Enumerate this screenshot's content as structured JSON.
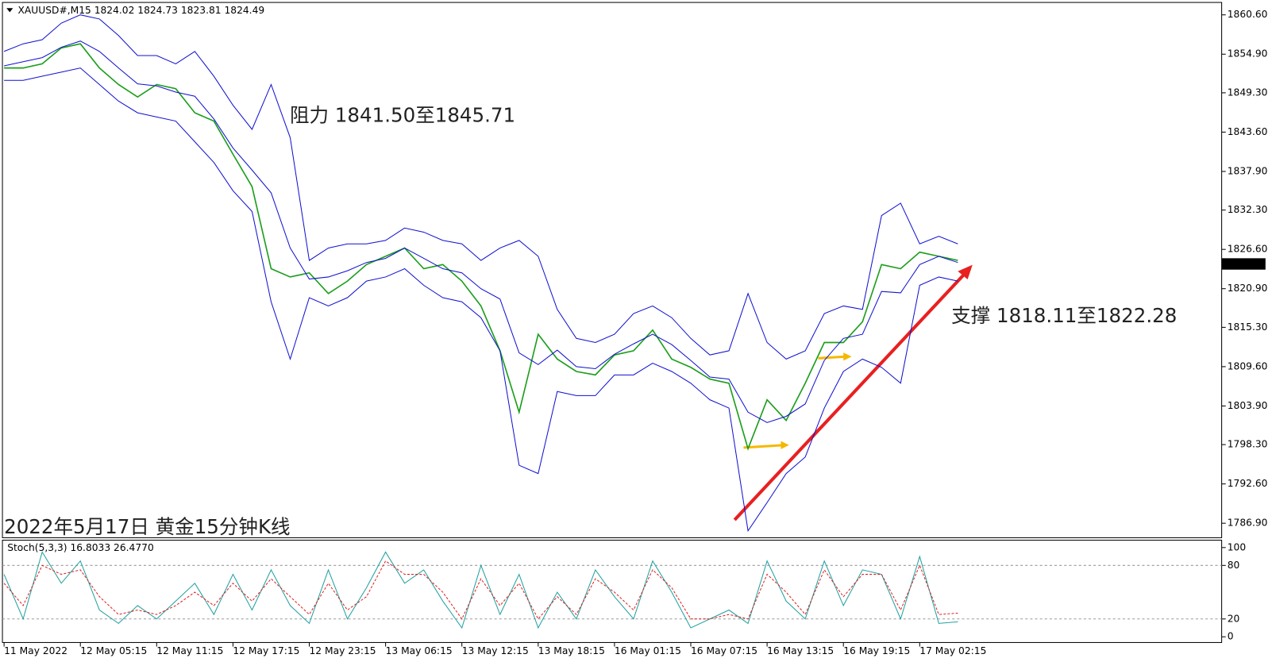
{
  "chart_data": [
    {
      "type": "line",
      "title": "XAUUSD#,M15  1824.02 1824.73 1823.81 1824.49",
      "annotations": [
        "阻力 1841.50至1845.71",
        "支撑 1818.11至1822.28",
        "2022年5月17日 黄金15分钟K线"
      ],
      "categories": [
        "11 May 2022",
        null,
        null,
        null,
        "12 May 05:15",
        null,
        null,
        null,
        "12 May 11:15",
        null,
        null,
        null,
        "12 May 17:15",
        null,
        null,
        null,
        "12 May 23:15",
        null,
        null,
        null,
        "13 May 06:15",
        null,
        null,
        null,
        "13 May 12:15",
        null,
        null,
        null,
        "13 May 18:15",
        null,
        null,
        null,
        "16 May 01:15",
        null,
        null,
        null,
        "16 May 07:15",
        null,
        null,
        null,
        "16 May 13:15",
        null,
        null,
        null,
        "16 May 19:15",
        null,
        null,
        null,
        "17 May 02:15",
        null,
        null
      ],
      "series": [
        {
          "name": "Close",
          "color": "#1c9e1c",
          "values": [
            1852.9,
            1852.9,
            1853.5,
            1855.8,
            1856.4,
            1852.9,
            1850.5,
            1848.7,
            1850.5,
            1849.9,
            1846.4,
            1845.2,
            1840.4,
            1835.7,
            1823.8,
            1822.6,
            1823.2,
            1820.2,
            1822.0,
            1824.4,
            1825.6,
            1826.8,
            1823.8,
            1824.4,
            1822.0,
            1818.4,
            1811.9,
            1803.0,
            1814.3,
            1810.7,
            1808.9,
            1808.4,
            1811.3,
            1811.9,
            1814.9,
            1810.7,
            1809.5,
            1807.8,
            1807.2,
            1797.7,
            1804.8,
            1801.8,
            1807.2,
            1813.1,
            1813.1,
            1816.1,
            1824.4,
            1823.8,
            1826.2,
            1825.6,
            1825.0
          ]
        },
        {
          "name": "Upper",
          "color": "#1010d0",
          "values": [
            1855.3,
            1856.4,
            1857.0,
            1859.4,
            1860.6,
            1860.0,
            1857.6,
            1854.7,
            1854.7,
            1853.5,
            1855.3,
            1851.7,
            1847.5,
            1844.0,
            1850.5,
            1842.8,
            1825.0,
            1826.8,
            1827.4,
            1827.4,
            1827.9,
            1829.7,
            1829.1,
            1827.9,
            1827.4,
            1825.0,
            1826.8,
            1827.9,
            1825.6,
            1817.9,
            1813.7,
            1813.1,
            1814.3,
            1817.3,
            1818.4,
            1816.7,
            1813.7,
            1811.3,
            1811.9,
            1820.2,
            1813.1,
            1810.7,
            1811.9,
            1817.3,
            1818.4,
            1817.9,
            1831.5,
            1833.3,
            1827.4,
            1828.5,
            1827.4
          ]
        },
        {
          "name": "Middle",
          "color": "#1010d0",
          "values": [
            1853.2,
            1853.8,
            1854.4,
            1855.9,
            1856.8,
            1855.3,
            1852.9,
            1850.6,
            1850.3,
            1849.4,
            1848.8,
            1845.5,
            1841.3,
            1838.1,
            1834.8,
            1826.8,
            1822.3,
            1822.6,
            1823.5,
            1824.7,
            1825.3,
            1826.8,
            1825.3,
            1823.8,
            1823.2,
            1820.9,
            1819.4,
            1811.6,
            1809.9,
            1812.0,
            1809.6,
            1809.3,
            1811.4,
            1812.9,
            1814.3,
            1812.8,
            1810.5,
            1808.1,
            1807.8,
            1803.0,
            1801.5,
            1802.4,
            1804.2,
            1810.5,
            1813.7,
            1814.3,
            1820.5,
            1820.3,
            1824.4,
            1825.6,
            1824.7
          ]
        },
        {
          "name": "Lower",
          "color": "#1010d0",
          "values": [
            1851.1,
            1851.1,
            1851.7,
            1852.3,
            1852.9,
            1850.5,
            1848.1,
            1846.4,
            1845.8,
            1845.2,
            1842.2,
            1839.2,
            1835.1,
            1832.1,
            1819.0,
            1810.7,
            1819.6,
            1818.4,
            1819.6,
            1822.0,
            1822.6,
            1823.8,
            1821.4,
            1819.6,
            1819.0,
            1816.7,
            1811.9,
            1795.3,
            1794.1,
            1806.0,
            1805.4,
            1805.4,
            1808.4,
            1808.4,
            1810.1,
            1808.9,
            1807.2,
            1804.8,
            1803.6,
            1785.8,
            1789.9,
            1794.1,
            1796.5,
            1803.6,
            1808.9,
            1810.7,
            1809.5,
            1807.2,
            1821.4,
            1822.6,
            1822.0
          ]
        }
      ],
      "last_price": 1824.49,
      "ylim": [
        1784.8,
        1862.4
      ],
      "yticks": [
        {
          "value": 1860.6,
          "label": "1860.60"
        },
        {
          "value": 1854.9,
          "label": "1854.90"
        },
        {
          "value": 1849.3,
          "label": "1849.30"
        },
        {
          "value": 1843.6,
          "label": "1843.60"
        },
        {
          "value": 1837.9,
          "label": "1837.90"
        },
        {
          "value": 1832.3,
          "label": "1832.30"
        },
        {
          "value": 1826.6,
          "label": "1826.60"
        },
        {
          "value": 1820.9,
          "label": "1820.90"
        },
        {
          "value": 1815.3,
          "label": "1815.30"
        },
        {
          "value": 1809.6,
          "label": "1809.60"
        },
        {
          "value": 1803.9,
          "label": "1803.90"
        },
        {
          "value": 1798.3,
          "label": "1798.30"
        },
        {
          "value": 1792.6,
          "label": "1792.60"
        },
        {
          "value": 1786.9,
          "label": "1786.90"
        }
      ]
    },
    {
      "type": "line",
      "title": "Stoch(5,3,3) 16.8033 26.4770",
      "series": [
        {
          "name": "Main",
          "color": "#20a0a0",
          "values": [
            70,
            20,
            95,
            60,
            85,
            30,
            15,
            35,
            20,
            40,
            60,
            25,
            70,
            30,
            75,
            35,
            15,
            75,
            20,
            55,
            95,
            60,
            75,
            40,
            10,
            80,
            25,
            70,
            10,
            50,
            20,
            75,
            45,
            20,
            85,
            50,
            10,
            20,
            30,
            15,
            85,
            40,
            20,
            85,
            35,
            75,
            70,
            20,
            90,
            15,
            16.8
          ]
        },
        {
          "name": "Signal",
          "color": "#e02020",
          "values": [
            60,
            35,
            80,
            70,
            75,
            45,
            25,
            30,
            25,
            35,
            50,
            35,
            60,
            40,
            65,
            45,
            25,
            60,
            30,
            45,
            85,
            70,
            70,
            50,
            20,
            65,
            35,
            60,
            20,
            45,
            25,
            65,
            50,
            30,
            75,
            55,
            20,
            20,
            25,
            20,
            70,
            50,
            25,
            75,
            45,
            70,
            70,
            30,
            80,
            25,
            26.5
          ]
        }
      ],
      "levels": [
        20,
        80
      ],
      "ylim": [
        -6.4,
        108.3
      ],
      "yticks": [
        0,
        20,
        80,
        100
      ]
    }
  ]
}
